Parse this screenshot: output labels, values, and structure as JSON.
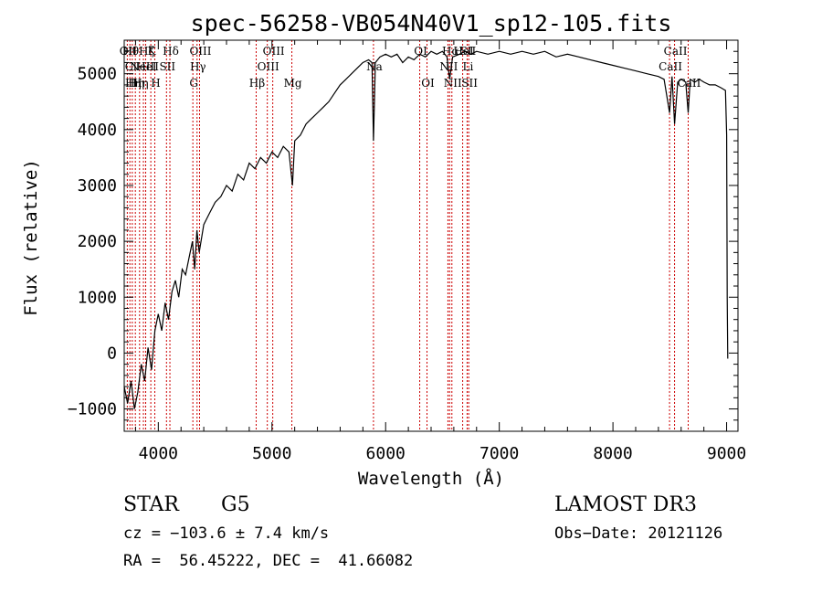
{
  "chart_data": {
    "type": "line",
    "title": "spec-56258-VB054N40V1_sp12-105.fits",
    "xlabel": "Wavelength (Å)",
    "ylabel": "Flux (relative)",
    "xlim": [
      3700,
      9100
    ],
    "ylim": [
      -1400,
      5600
    ],
    "xticks": [
      4000,
      5000,
      6000,
      7000,
      8000,
      9000
    ],
    "xtick_labels": [
      "4000",
      "5000",
      "6000",
      "7000",
      "8000",
      "9000"
    ],
    "yticks": [
      -1000,
      0,
      1000,
      2000,
      3000,
      4000,
      5000
    ],
    "ytick_labels": [
      "−1000",
      "0",
      "1000",
      "2000",
      "3000",
      "4000",
      "5000"
    ],
    "line_color": "#000000",
    "marker_color": "#cc0000",
    "series": [
      {
        "name": "flux",
        "x": [
          3700,
          3730,
          3760,
          3790,
          3820,
          3850,
          3880,
          3910,
          3940,
          3970,
          4000,
          4030,
          4060,
          4090,
          4120,
          4150,
          4180,
          4210,
          4240,
          4270,
          4300,
          4320,
          4340,
          4360,
          4400,
          4450,
          4500,
          4550,
          4600,
          4650,
          4700,
          4750,
          4800,
          4850,
          4900,
          4950,
          5000,
          5050,
          5100,
          5150,
          5180,
          5200,
          5250,
          5300,
          5350,
          5400,
          5450,
          5500,
          5550,
          5600,
          5650,
          5700,
          5750,
          5800,
          5850,
          5880,
          5893,
          5910,
          5950,
          6000,
          6050,
          6100,
          6150,
          6200,
          6250,
          6300,
          6350,
          6400,
          6450,
          6500,
          6540,
          6563,
          6590,
          6650,
          6700,
          6750,
          6800,
          6900,
          7000,
          7100,
          7200,
          7300,
          7400,
          7500,
          7600,
          7700,
          7800,
          7900,
          8000,
          8100,
          8200,
          8300,
          8400,
          8450,
          8498,
          8520,
          8542,
          8570,
          8600,
          8640,
          8662,
          8680,
          8720,
          8760,
          8800,
          8850,
          8900,
          8950,
          8990,
          9000,
          9005,
          9010
        ],
        "y": [
          -600,
          -900,
          -500,
          -1000,
          -700,
          -200,
          -500,
          100,
          -300,
          400,
          700,
          400,
          900,
          600,
          1100,
          1300,
          1000,
          1500,
          1400,
          1700,
          2000,
          1500,
          2200,
          1800,
          2300,
          2500,
          2700,
          2800,
          3000,
          2900,
          3200,
          3100,
          3400,
          3300,
          3500,
          3400,
          3600,
          3500,
          3700,
          3600,
          3000,
          3800,
          3900,
          4100,
          4200,
          4300,
          4400,
          4500,
          4650,
          4800,
          4900,
          5000,
          5100,
          5200,
          5250,
          5200,
          3800,
          5200,
          5300,
          5350,
          5300,
          5350,
          5200,
          5300,
          5250,
          5350,
          5300,
          5400,
          5350,
          5400,
          5300,
          4900,
          5300,
          5350,
          5400,
          5350,
          5400,
          5350,
          5400,
          5350,
          5400,
          5350,
          5400,
          5300,
          5350,
          5300,
          5250,
          5200,
          5150,
          5100,
          5050,
          5000,
          4950,
          4900,
          4300,
          4950,
          4100,
          4850,
          4900,
          4850,
          4300,
          4900,
          4850,
          4900,
          4850,
          4800,
          4800,
          4750,
          4700,
          3900,
          1000,
          -100
        ]
      }
    ],
    "lines": [
      {
        "wave": 3727,
        "rows": [
          "OII"
        ]
      },
      {
        "wave": 3750,
        "rows": [
          "Hθ",
          "Cl"
        ]
      },
      {
        "wave": 3771,
        "rows": [
          "",
          "",
          "Hη"
        ]
      },
      {
        "wave": 3798,
        "rows": [
          "",
          "",
          "Hη"
        ]
      },
      {
        "wave": 3835,
        "rows": [
          "",
          "",
          "Hη"
        ]
      },
      {
        "wave": 3869,
        "rows": [
          "",
          "NeIII"
        ]
      },
      {
        "wave": 3889,
        "rows": [
          "Hζ",
          "HeI"
        ]
      },
      {
        "wave": 3934,
        "rows": [
          "K"
        ]
      },
      {
        "wave": 3969,
        "rows": [
          "",
          "",
          "H"
        ]
      },
      {
        "wave": 4072,
        "rows": [
          "",
          "SII"
        ]
      },
      {
        "wave": 4102,
        "rows": [
          "Hδ"
        ]
      },
      {
        "wave": 4304,
        "rows": [
          "",
          "",
          "G"
        ]
      },
      {
        "wave": 4341,
        "rows": [
          "",
          "Hγ"
        ]
      },
      {
        "wave": 4363,
        "rows": [
          "OIII"
        ]
      },
      {
        "wave": 4861,
        "rows": [
          "",
          "",
          "Hβ"
        ]
      },
      {
        "wave": 4959,
        "rows": [
          "",
          "OIII"
        ]
      },
      {
        "wave": 5007,
        "rows": [
          "OIII"
        ]
      },
      {
        "wave": 5175,
        "rows": [
          "",
          "",
          "Mg"
        ]
      },
      {
        "wave": 5893,
        "rows": [
          "",
          "Na"
        ]
      },
      {
        "wave": 6300,
        "rows": [
          "OI"
        ]
      },
      {
        "wave": 6364,
        "rows": [
          "",
          "",
          "OI"
        ]
      },
      {
        "wave": 6548,
        "rows": [
          "",
          "NII"
        ]
      },
      {
        "wave": 6563,
        "rows": [
          "Hα"
        ]
      },
      {
        "wave": 6583,
        "rows": [
          "",
          "",
          "NII"
        ]
      },
      {
        "wave": 6678,
        "rows": [
          "HeI"
        ]
      },
      {
        "wave": 6717,
        "rows": [
          "SII",
          "Li"
        ]
      },
      {
        "wave": 6731,
        "rows": [
          "",
          "",
          "SII"
        ]
      },
      {
        "wave": 8498,
        "rows": [
          "",
          "CaII"
        ]
      },
      {
        "wave": 8542,
        "rows": [
          "CaII"
        ]
      },
      {
        "wave": 8662,
        "rows": [
          "",
          "",
          "CaII"
        ]
      }
    ]
  },
  "info": {
    "object_class": "STAR",
    "subclass": "G5",
    "survey": "LAMOST DR3",
    "redshift_line": "cz = −103.6 ± 7.4 km/s",
    "obs_date_line": "Obs−Date: 20121126",
    "coords_line": "RA =  56.45222, DEC =  41.66082"
  }
}
